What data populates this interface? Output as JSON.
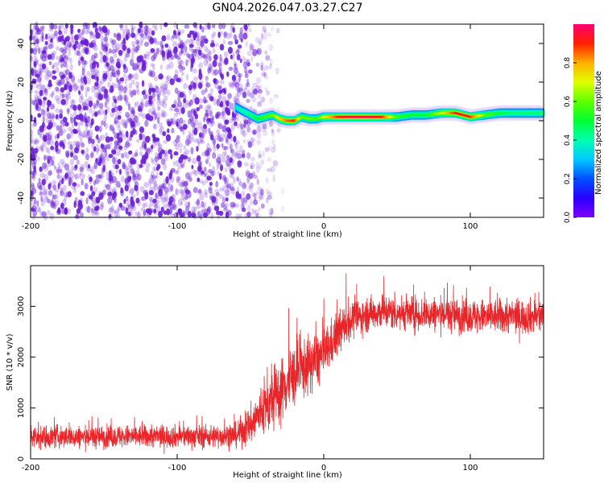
{
  "title": "GN04.2026.047.03.27.C27",
  "colors": {
    "snr_line": "#e8262a",
    "scatter_purple": "#6a1fd6",
    "axis": "#000000"
  },
  "colorbar": {
    "label": "Normalized spectral amplitude",
    "range": [
      0,
      1
    ],
    "ticks": [
      "0.0",
      "0.2",
      "0.4",
      "0.6",
      "0.8"
    ],
    "tick_values": [
      0.0,
      0.2,
      0.4,
      0.6,
      0.8
    ],
    "colormap": "hsv-rainbow (violet=0, red=1)"
  },
  "chart_data": [
    {
      "type": "heatmap",
      "name": "spectrogram",
      "title": "GN04.2026.047.03.27.C27",
      "xlabel": "Height of straight line (km)",
      "ylabel": "Frequency (Hz)",
      "xlim": [
        -200,
        150
      ],
      "ylim": [
        -50,
        50
      ],
      "x_ticks": [
        "-200",
        "-100",
        "0",
        "100"
      ],
      "x_tick_values": [
        -200,
        -100,
        0,
        100
      ],
      "y_ticks": [
        "40",
        "20",
        "0",
        "-20",
        "-40"
      ],
      "y_tick_values": [
        40,
        20,
        0,
        -20,
        -40
      ],
      "noise_region_x": [
        -200,
        -60
      ],
      "noise_amplitude": [
        0.05,
        0.3
      ],
      "transition_region_x": [
        -60,
        -25
      ],
      "signal_trace": {
        "x": [
          -60,
          -55,
          -50,
          -45,
          -40,
          -35,
          -30,
          -25,
          -20,
          -15,
          -10,
          -5,
          0,
          10,
          20,
          30,
          40,
          50,
          60,
          70,
          80,
          90,
          100,
          110,
          120,
          130,
          140,
          150
        ],
        "frequency_hz": [
          7,
          5,
          3,
          1,
          2,
          3,
          1,
          0,
          0,
          2,
          1,
          1,
          2,
          2,
          2,
          2,
          2,
          2,
          3,
          3,
          4,
          4,
          2,
          3,
          4,
          4,
          4,
          4
        ],
        "amplitude": [
          0.35,
          0.4,
          0.45,
          0.5,
          0.55,
          0.6,
          0.75,
          0.85,
          0.9,
          0.6,
          0.6,
          0.55,
          0.7,
          0.9,
          0.95,
          0.95,
          0.9,
          0.55,
          0.5,
          0.5,
          0.7,
          0.9,
          0.9,
          0.6,
          0.5,
          0.45,
          0.45,
          0.45
        ]
      }
    },
    {
      "type": "line",
      "name": "snr",
      "xlabel": "Height of straight line (km)",
      "ylabel": "SNR (10 * v/v)",
      "xlim": [
        -200,
        150
      ],
      "ylim": [
        0,
        3800
      ],
      "x_ticks": [
        "-200",
        "-100",
        "0",
        "100"
      ],
      "x_tick_values": [
        -200,
        -100,
        0,
        100
      ],
      "y_ticks": [
        "0",
        "1000",
        "2000",
        "3000"
      ],
      "y_tick_values": [
        0,
        1000,
        2000,
        3000
      ],
      "series": [
        {
          "name": "SNR",
          "x": [
            -200,
            -180,
            -160,
            -140,
            -120,
            -100,
            -80,
            -60,
            -50,
            -45,
            -40,
            -35,
            -30,
            -25,
            -20,
            -15,
            -10,
            -5,
            0,
            5,
            10,
            15,
            20,
            30,
            40,
            60,
            80,
            100,
            120,
            150
          ],
          "mean": [
            420,
            430,
            430,
            440,
            440,
            440,
            440,
            460,
            650,
            850,
            1000,
            1150,
            1300,
            1500,
            1650,
            1750,
            1850,
            1950,
            2050,
            2250,
            2450,
            2650,
            2750,
            2850,
            2900,
            2850,
            2850,
            2800,
            2800,
            2800
          ],
          "spread": [
            260,
            260,
            260,
            260,
            260,
            260,
            260,
            280,
            450,
            550,
            650,
            700,
            750,
            750,
            700,
            700,
            650,
            650,
            600,
            550,
            500,
            450,
            420,
            400,
            400,
            400,
            400,
            400,
            400,
            400
          ]
        }
      ]
    }
  ]
}
